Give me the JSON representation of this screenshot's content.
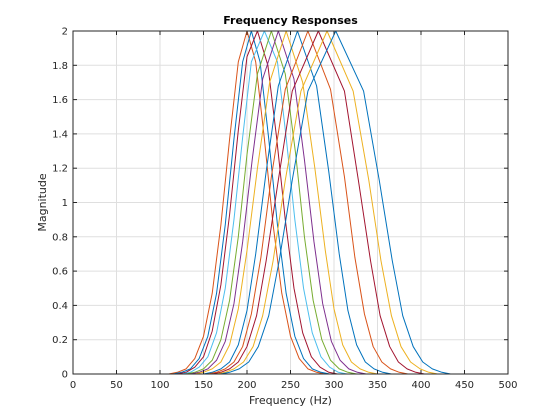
{
  "chart_data": {
    "type": "line",
    "title": "Frequency Responses",
    "xlabel": "Frequency (Hz)",
    "ylabel": "Magnitude",
    "xlim": [
      0,
      500
    ],
    "ylim": [
      0,
      2
    ],
    "grid": true,
    "x_ticks": [
      0,
      50,
      100,
      150,
      200,
      250,
      300,
      350,
      400,
      450,
      500
    ],
    "y_ticks": [
      0,
      0.2,
      0.4,
      0.6,
      0.8,
      1,
      1.2,
      1.4,
      1.6,
      1.8,
      2
    ],
    "series": [
      {
        "color": "#D95319",
        "points": [
          [
            0,
            0
          ],
          [
            110,
            0
          ],
          [
            120,
            0.01
          ],
          [
            130,
            0.03
          ],
          [
            140,
            0.09
          ],
          [
            150,
            0.22
          ],
          [
            160,
            0.47
          ],
          [
            170,
            0.87
          ],
          [
            180,
            1.37
          ],
          [
            190,
            1.82
          ],
          [
            200,
            2.0
          ],
          [
            210,
            1.82
          ],
          [
            220,
            1.37
          ],
          [
            230,
            0.87
          ],
          [
            240,
            0.47
          ],
          [
            250,
            0.22
          ],
          [
            260,
            0.09
          ],
          [
            270,
            0.03
          ],
          [
            280,
            0.01
          ],
          [
            290,
            0
          ],
          [
            500,
            0
          ]
        ]
      },
      {
        "color": "#0072BD",
        "points": [
          [
            0,
            0
          ],
          [
            115,
            0
          ],
          [
            125,
            0.01
          ],
          [
            135,
            0.03
          ],
          [
            145,
            0.09
          ],
          [
            155,
            0.22
          ],
          [
            165,
            0.47
          ],
          [
            175,
            0.87
          ],
          [
            185,
            1.37
          ],
          [
            195,
            1.82
          ],
          [
            205,
            2.0
          ],
          [
            215,
            1.82
          ],
          [
            225,
            1.37
          ],
          [
            235,
            0.87
          ],
          [
            245,
            0.47
          ],
          [
            255,
            0.22
          ],
          [
            265,
            0.09
          ],
          [
            275,
            0.03
          ],
          [
            285,
            0.01
          ],
          [
            295,
            0
          ],
          [
            500,
            0
          ]
        ]
      },
      {
        "color": "#A2142F",
        "points": [
          [
            0,
            0
          ],
          [
            120,
            0
          ],
          [
            130,
            0.01
          ],
          [
            140,
            0.04
          ],
          [
            150,
            0.1
          ],
          [
            160,
            0.25
          ],
          [
            170,
            0.52
          ],
          [
            180,
            0.93
          ],
          [
            190,
            1.42
          ],
          [
            200,
            1.85
          ],
          [
            212,
            2.0
          ],
          [
            224,
            1.8
          ],
          [
            234,
            1.38
          ],
          [
            244,
            0.9
          ],
          [
            254,
            0.5
          ],
          [
            264,
            0.24
          ],
          [
            274,
            0.1
          ],
          [
            284,
            0.04
          ],
          [
            294,
            0.01
          ],
          [
            304,
            0
          ],
          [
            500,
            0
          ]
        ]
      },
      {
        "color": "#4DBEEE",
        "points": [
          [
            0,
            0
          ],
          [
            125,
            0
          ],
          [
            135,
            0.01
          ],
          [
            145,
            0.04
          ],
          [
            155,
            0.1
          ],
          [
            165,
            0.24
          ],
          [
            175,
            0.5
          ],
          [
            185,
            0.9
          ],
          [
            195,
            1.38
          ],
          [
            205,
            1.82
          ],
          [
            220,
            2.0
          ],
          [
            235,
            1.82
          ],
          [
            245,
            1.38
          ],
          [
            255,
            0.9
          ],
          [
            265,
            0.5
          ],
          [
            275,
            0.24
          ],
          [
            285,
            0.1
          ],
          [
            295,
            0.04
          ],
          [
            305,
            0.01
          ],
          [
            315,
            0
          ],
          [
            500,
            0
          ]
        ]
      },
      {
        "color": "#77AC30",
        "points": [
          [
            0,
            0
          ],
          [
            130,
            0
          ],
          [
            140,
            0.01
          ],
          [
            150,
            0.03
          ],
          [
            160,
            0.08
          ],
          [
            170,
            0.2
          ],
          [
            180,
            0.43
          ],
          [
            190,
            0.8
          ],
          [
            200,
            1.28
          ],
          [
            212,
            1.75
          ],
          [
            228,
            2.0
          ],
          [
            244,
            1.75
          ],
          [
            256,
            1.28
          ],
          [
            266,
            0.8
          ],
          [
            276,
            0.43
          ],
          [
            286,
            0.2
          ],
          [
            296,
            0.08
          ],
          [
            306,
            0.03
          ],
          [
            316,
            0.01
          ],
          [
            326,
            0
          ],
          [
            500,
            0
          ]
        ]
      },
      {
        "color": "#7E2F8E",
        "points": [
          [
            0,
            0
          ],
          [
            135,
            0
          ],
          [
            145,
            0.01
          ],
          [
            155,
            0.03
          ],
          [
            165,
            0.08
          ],
          [
            175,
            0.19
          ],
          [
            185,
            0.41
          ],
          [
            195,
            0.77
          ],
          [
            206,
            1.25
          ],
          [
            218,
            1.72
          ],
          [
            236,
            2.0
          ],
          [
            254,
            1.72
          ],
          [
            266,
            1.25
          ],
          [
            277,
            0.77
          ],
          [
            287,
            0.41
          ],
          [
            297,
            0.19
          ],
          [
            307,
            0.08
          ],
          [
            317,
            0.03
          ],
          [
            327,
            0.01
          ],
          [
            337,
            0
          ],
          [
            500,
            0
          ]
        ]
      },
      {
        "color": "#EDB120",
        "points": [
          [
            0,
            0
          ],
          [
            140,
            0
          ],
          [
            150,
            0.01
          ],
          [
            160,
            0.03
          ],
          [
            170,
            0.07
          ],
          [
            180,
            0.17
          ],
          [
            190,
            0.38
          ],
          [
            200,
            0.72
          ],
          [
            212,
            1.2
          ],
          [
            226,
            1.7
          ],
          [
            245,
            2.0
          ],
          [
            264,
            1.7
          ],
          [
            278,
            1.2
          ],
          [
            290,
            0.72
          ],
          [
            300,
            0.38
          ],
          [
            310,
            0.17
          ],
          [
            320,
            0.07
          ],
          [
            330,
            0.03
          ],
          [
            340,
            0.01
          ],
          [
            350,
            0
          ],
          [
            500,
            0
          ]
        ]
      },
      {
        "color": "#0072BD",
        "points": [
          [
            0,
            0
          ],
          [
            150,
            0
          ],
          [
            160,
            0.01
          ],
          [
            170,
            0.03
          ],
          [
            180,
            0.07
          ],
          [
            190,
            0.17
          ],
          [
            200,
            0.37
          ],
          [
            210,
            0.7
          ],
          [
            222,
            1.18
          ],
          [
            236,
            1.68
          ],
          [
            258,
            2.0
          ],
          [
            280,
            1.68
          ],
          [
            294,
            1.18
          ],
          [
            306,
            0.7
          ],
          [
            316,
            0.37
          ],
          [
            326,
            0.17
          ],
          [
            336,
            0.07
          ],
          [
            346,
            0.03
          ],
          [
            356,
            0.01
          ],
          [
            366,
            0
          ],
          [
            500,
            0
          ]
        ]
      },
      {
        "color": "#D95319",
        "points": [
          [
            0,
            0
          ],
          [
            155,
            0
          ],
          [
            165,
            0.01
          ],
          [
            175,
            0.03
          ],
          [
            185,
            0.07
          ],
          [
            195,
            0.16
          ],
          [
            205,
            0.35
          ],
          [
            216,
            0.68
          ],
          [
            228,
            1.15
          ],
          [
            244,
            1.66
          ],
          [
            270,
            2.0
          ],
          [
            296,
            1.66
          ],
          [
            312,
            1.15
          ],
          [
            324,
            0.68
          ],
          [
            335,
            0.35
          ],
          [
            345,
            0.16
          ],
          [
            355,
            0.07
          ],
          [
            365,
            0.03
          ],
          [
            375,
            0.01
          ],
          [
            385,
            0
          ],
          [
            500,
            0
          ]
        ]
      },
      {
        "color": "#A2142F",
        "points": [
          [
            0,
            0
          ],
          [
            160,
            0
          ],
          [
            170,
            0.01
          ],
          [
            180,
            0.03
          ],
          [
            190,
            0.07
          ],
          [
            200,
            0.16
          ],
          [
            211,
            0.34
          ],
          [
            222,
            0.66
          ],
          [
            236,
            1.13
          ],
          [
            252,
            1.65
          ],
          [
            282,
            2.0
          ],
          [
            312,
            1.65
          ],
          [
            328,
            1.13
          ],
          [
            342,
            0.66
          ],
          [
            353,
            0.34
          ],
          [
            364,
            0.16
          ],
          [
            374,
            0.07
          ],
          [
            384,
            0.03
          ],
          [
            394,
            0.01
          ],
          [
            404,
            0
          ],
          [
            500,
            0
          ]
        ]
      },
      {
        "color": "#EDB120",
        "points": [
          [
            0,
            0
          ],
          [
            165,
            0
          ],
          [
            175,
            0.01
          ],
          [
            185,
            0.03
          ],
          [
            196,
            0.07
          ],
          [
            207,
            0.16
          ],
          [
            218,
            0.34
          ],
          [
            230,
            0.66
          ],
          [
            244,
            1.13
          ],
          [
            262,
            1.65
          ],
          [
            292,
            2.0
          ],
          [
            322,
            1.65
          ],
          [
            340,
            1.13
          ],
          [
            354,
            0.66
          ],
          [
            366,
            0.34
          ],
          [
            377,
            0.16
          ],
          [
            388,
            0.07
          ],
          [
            399,
            0.03
          ],
          [
            409,
            0.01
          ],
          [
            419,
            0
          ],
          [
            500,
            0
          ]
        ]
      },
      {
        "color": "#0072BD",
        "points": [
          [
            0,
            0
          ],
          [
            170,
            0
          ],
          [
            180,
            0.01
          ],
          [
            191,
            0.03
          ],
          [
            202,
            0.07
          ],
          [
            213,
            0.16
          ],
          [
            225,
            0.34
          ],
          [
            237,
            0.66
          ],
          [
            252,
            1.13
          ],
          [
            270,
            1.65
          ],
          [
            302,
            2.0
          ],
          [
            334,
            1.65
          ],
          [
            352,
            1.13
          ],
          [
            367,
            0.66
          ],
          [
            379,
            0.34
          ],
          [
            391,
            0.16
          ],
          [
            402,
            0.07
          ],
          [
            413,
            0.03
          ],
          [
            424,
            0.01
          ],
          [
            434,
            0
          ],
          [
            500,
            0
          ]
        ]
      }
    ]
  }
}
